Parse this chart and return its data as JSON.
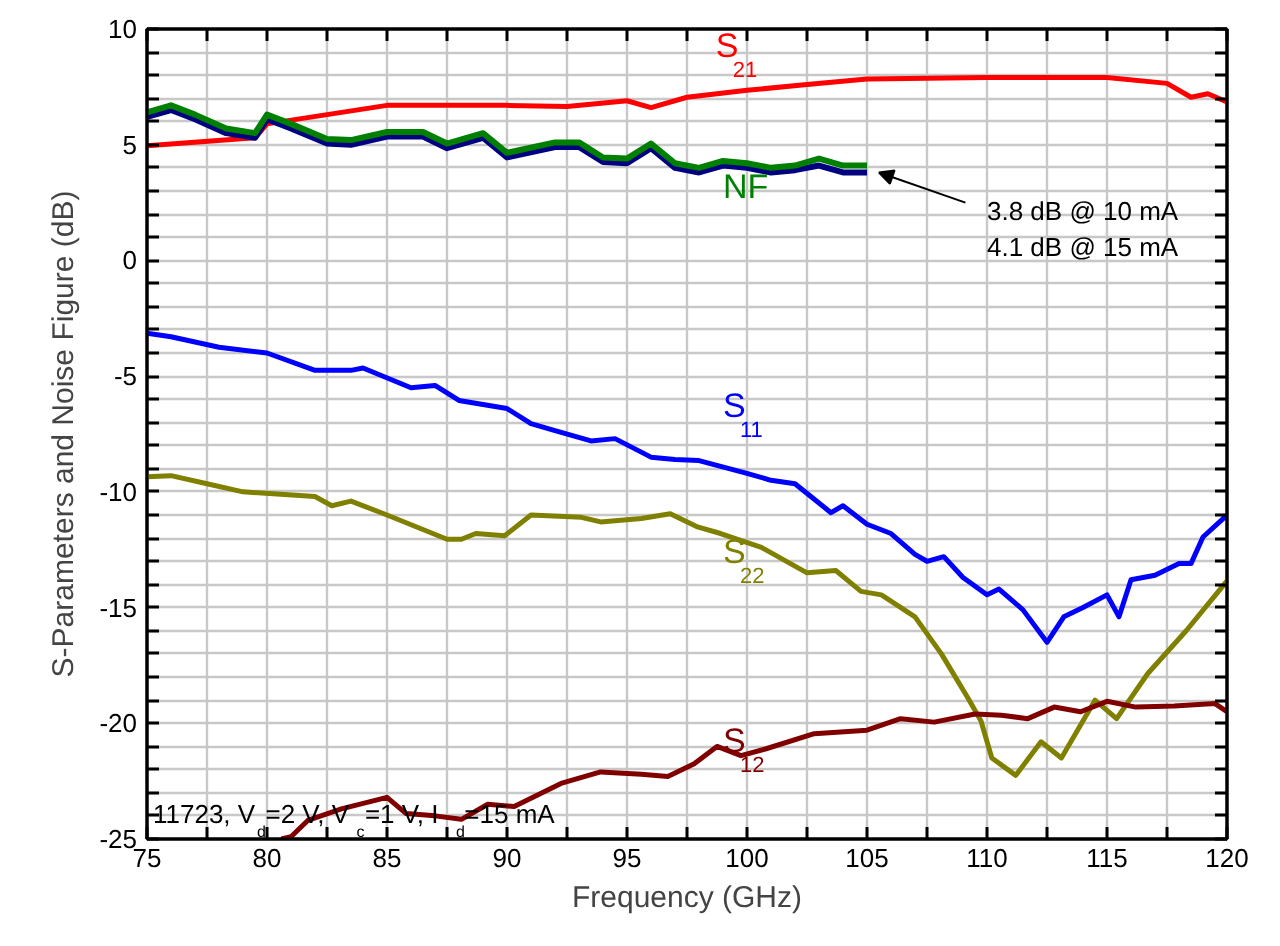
{
  "chart_data": {
    "type": "line",
    "xlabel": "Frequency (GHz)",
    "ylabel": "S-Parameters and Noise Figure (dB)",
    "xlim": [
      75,
      120
    ],
    "ylim": [
      -25,
      10
    ],
    "xticks": [
      75,
      {
        "value": 77.5,
        "label": null
      },
      80,
      {
        "value": 82.5,
        "label": null
      },
      85,
      {
        "value": 87.5,
        "label": null
      },
      90,
      {
        "value": 92.5,
        "label": null
      },
      95,
      {
        "value": 97.5,
        "label": null
      },
      100,
      {
        "value": 102.5,
        "label": null
      },
      105,
      {
        "value": 107.5,
        "label": null
      },
      110,
      {
        "value": 112.5,
        "label": null
      },
      115,
      {
        "value": 117.5,
        "label": null
      },
      120
    ],
    "yticks": [
      -25,
      {
        "value": -24,
        "label": null
      },
      {
        "value": -23,
        "label": null
      },
      {
        "value": -22,
        "label": null
      },
      {
        "value": -21,
        "label": null
      },
      -20,
      {
        "value": -19,
        "label": null
      },
      {
        "value": -18,
        "label": null
      },
      {
        "value": -17,
        "label": null
      },
      {
        "value": -16,
        "label": null
      },
      -15,
      {
        "value": -14,
        "label": null
      },
      {
        "value": -13,
        "label": null
      },
      {
        "value": -12,
        "label": null
      },
      {
        "value": -11,
        "label": null
      },
      -10,
      {
        "value": -9,
        "label": null
      },
      {
        "value": -8,
        "label": null
      },
      {
        "value": -7,
        "label": null
      },
      {
        "value": -6,
        "label": null
      },
      -5,
      {
        "value": -4,
        "label": null
      },
      {
        "value": -3,
        "label": null
      },
      {
        "value": -2,
        "label": null
      },
      {
        "value": -1,
        "label": null
      },
      0,
      {
        "value": 1,
        "label": null
      },
      {
        "value": 2,
        "label": null
      },
      {
        "value": 3,
        "label": null
      },
      {
        "value": 4,
        "label": null
      },
      5,
      {
        "value": 6,
        "label": null
      },
      {
        "value": 7,
        "label": null
      },
      {
        "value": 8,
        "label": null
      },
      {
        "value": 9,
        "label": null
      },
      10
    ],
    "grid": true,
    "legend": false,
    "marker": "none",
    "line_style": "solid",
    "series": [
      {
        "name": "S$_{21}$",
        "color": "#ff0000",
        "x": [
          75,
          79.5,
          80,
          85,
          90,
          92.5,
          95,
          96,
          97.5,
          100,
          102.5,
          105,
          110,
          115,
          117.5,
          118.5,
          119.2,
          120
        ],
        "values": [
          4.95,
          5.3,
          5.9,
          6.7,
          6.7,
          6.65,
          6.9,
          6.6,
          7.05,
          7.35,
          7.6,
          7.84,
          7.9,
          7.9,
          7.65,
          7.05,
          7.2,
          6.85
        ]
      },
      {
        "color": "#000080",
        "x": [
          75,
          76,
          77,
          78.3,
          79.5,
          80,
          81,
          82.5,
          83.5,
          85,
          86.5,
          87.5,
          89,
          90,
          92,
          93,
          94,
          95,
          96,
          97,
          98,
          99,
          100,
          101,
          102,
          103,
          104,
          105
        ],
        "values": [
          6.2,
          6.5,
          6.1,
          5.5,
          5.3,
          6.1,
          5.7,
          5.05,
          5.0,
          5.35,
          5.35,
          4.85,
          5.3,
          4.45,
          4.9,
          4.9,
          4.25,
          4.2,
          4.85,
          4.0,
          3.8,
          4.1,
          4.0,
          3.8,
          3.9,
          4.1,
          3.8,
          3.8
        ]
      },
      {
        "name": "NF",
        "color": "#008000",
        "x": [
          75,
          76,
          77,
          78.3,
          79.5,
          80,
          81,
          82.5,
          83.5,
          85,
          86.5,
          87.5,
          89,
          90,
          92,
          93,
          94,
          95,
          96,
          97,
          98,
          99,
          100,
          101,
          102,
          103,
          104,
          105
        ],
        "values": [
          6.4,
          6.7,
          6.3,
          5.7,
          5.5,
          6.3,
          5.9,
          5.25,
          5.2,
          5.55,
          5.55,
          5.05,
          5.5,
          4.65,
          5.1,
          5.1,
          4.45,
          4.4,
          5.05,
          4.2,
          4.0,
          4.3,
          4.2,
          4.0,
          4.1,
          4.4,
          4.1,
          4.1
        ]
      },
      {
        "name": "S$_{11}$",
        "color": "#0000ff",
        "x": [
          75,
          76,
          78,
          80,
          82,
          83.5,
          84,
          86,
          87,
          88,
          90,
          91,
          92,
          93.5,
          94.5,
          96,
          97,
          98,
          100,
          101,
          102,
          103.5,
          104,
          105,
          106,
          107,
          107.5,
          108.2,
          109,
          110,
          110.5,
          111.5,
          112.5,
          113.2,
          114,
          115,
          115.5,
          116,
          117,
          118,
          118.5,
          119,
          120
        ],
        "values": [
          -3.15,
          -3.3,
          -3.75,
          -4.0,
          -4.75,
          -4.75,
          -4.65,
          -5.5,
          -5.4,
          -6.05,
          -6.4,
          -7.05,
          -7.35,
          -7.8,
          -7.7,
          -8.5,
          -8.6,
          -8.65,
          -9.2,
          -9.5,
          -9.65,
          -10.9,
          -10.6,
          -11.4,
          -11.8,
          -12.7,
          -13.0,
          -12.8,
          -13.7,
          -14.45,
          -14.2,
          -15.1,
          -16.5,
          -15.4,
          -15.0,
          -14.45,
          -15.4,
          -13.8,
          -13.6,
          -13.1,
          -13.1,
          -11.95,
          -11.0
        ]
      },
      {
        "name": "S$_{22}$",
        "color": "#808000",
        "x": [
          75,
          76,
          77.5,
          79,
          82,
          82.7,
          83.5,
          85,
          87.5,
          88.1,
          88.7,
          89.9,
          91,
          93.1,
          93.9,
          95.6,
          96.8,
          97.9,
          98.9,
          100.6,
          102.5,
          103.7,
          104.75,
          105.6,
          107,
          108.1,
          109.2,
          109.75,
          110.2,
          111.2,
          112.25,
          113.1,
          114.5,
          115.4,
          116.7,
          118.3,
          120
        ],
        "values": [
          -9.35,
          -9.3,
          -9.65,
          -10.0,
          -10.2,
          -10.6,
          -10.4,
          -11.0,
          -12.05,
          -12.05,
          -11.8,
          -11.9,
          -11.0,
          -11.1,
          -11.3,
          -11.15,
          -10.95,
          -11.5,
          -11.8,
          -12.4,
          -13.5,
          -13.4,
          -14.3,
          -14.45,
          -15.4,
          -17.0,
          -18.9,
          -19.9,
          -21.5,
          -22.25,
          -20.8,
          -21.5,
          -19.0,
          -19.8,
          -17.85,
          -16.0,
          -13.85
        ]
      },
      {
        "name": "S$_{12}$",
        "color": "#800000",
        "x": [
          80.6,
          81,
          81.7,
          83.1,
          85,
          85.8,
          87,
          88.1,
          89.2,
          90.3,
          92.25,
          93.9,
          95.6,
          96.7,
          97.8,
          98.75,
          99.75,
          100.8,
          102.8,
          105,
          106.4,
          107.8,
          109.5,
          110.6,
          111.7,
          112.8,
          113.9,
          115,
          116.2,
          117.8,
          119.5,
          120
        ],
        "values": [
          -25.0,
          -24.9,
          -24.2,
          -23.7,
          -23.2,
          -23.9,
          -24.0,
          -24.15,
          -23.5,
          -23.6,
          -22.6,
          -22.1,
          -22.2,
          -22.3,
          -21.75,
          -21.0,
          -21.4,
          -21.1,
          -20.45,
          -20.3,
          -19.8,
          -19.95,
          -19.6,
          -19.65,
          -19.8,
          -19.3,
          -19.5,
          -19.05,
          -19.3,
          -19.25,
          -19.15,
          -19.5
        ]
      }
    ],
    "annotations": [
      "3.8 dB @ 10 mA\n4.1 dB @ 15 mA",
      "11723, V$_{d}$=2 V, V$_{c}$=1 V, I$_{d}$=15 mA"
    ]
  }
}
